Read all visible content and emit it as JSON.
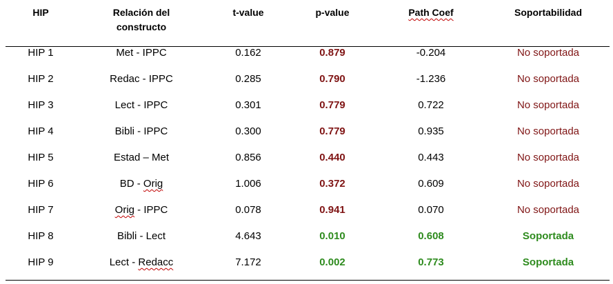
{
  "colors": {
    "negative": "#7f1414",
    "positive": "#2e8b1e",
    "text": "#000000"
  },
  "headers": {
    "hip": "HIP",
    "relacion_line1": "Relación del",
    "relacion_line2": "constructo",
    "tvalue": "t-value",
    "pvalue": "p-value",
    "pathcoef": "Path Coef",
    "soportabilidad": "Soportabilidad"
  },
  "rows": [
    {
      "hip": "HIP 1",
      "relacion": "Met - IPPC",
      "tvalue": "0.162",
      "pvalue": "0.879",
      "pathcoef": "-0.204",
      "soporte": "No soportada",
      "supported": false
    },
    {
      "hip": "HIP 2",
      "relacion": "Redac - IPPC",
      "tvalue": "0.285",
      "pvalue": "0.790",
      "pathcoef": "-1.236",
      "soporte": "No soportada",
      "supported": false
    },
    {
      "hip": "HIP 3",
      "relacion": "Lect - IPPC",
      "tvalue": "0.301",
      "pvalue": "0.779",
      "pathcoef": "0.722",
      "soporte": "No soportada",
      "supported": false
    },
    {
      "hip": "HIP 4",
      "relacion": "Bibli - IPPC",
      "tvalue": "0.300",
      "pvalue": "0.779",
      "pathcoef": "0.935",
      "soporte": "No soportada",
      "supported": false
    },
    {
      "hip": "HIP 5",
      "relacion": "Estad – Met",
      "tvalue": "0.856",
      "pvalue": "0.440",
      "pathcoef": "0.443",
      "soporte": "No soportada",
      "supported": false
    },
    {
      "hip": "HIP 6",
      "relacion": "BD - Orig",
      "tvalue": "1.006",
      "pvalue": "0.372",
      "pathcoef": "0.609",
      "soporte": "No soportada",
      "supported": false
    },
    {
      "hip": "HIP 7",
      "relacion": "Orig - IPPC",
      "tvalue": "0.078",
      "pvalue": "0.941",
      "pathcoef": "0.070",
      "soporte": "No soportada",
      "supported": false
    },
    {
      "hip": "HIP 8",
      "relacion": "Bibli - Lect",
      "tvalue": "4.643",
      "pvalue": "0.010",
      "pathcoef": "0.608",
      "soporte": "Soportada",
      "supported": true
    },
    {
      "hip": "HIP 9",
      "relacion": "Lect - Redacc",
      "tvalue": "7.172",
      "pvalue": "0.002",
      "pathcoef": "0.773",
      "soporte": "Soportada",
      "supported": true
    }
  ]
}
